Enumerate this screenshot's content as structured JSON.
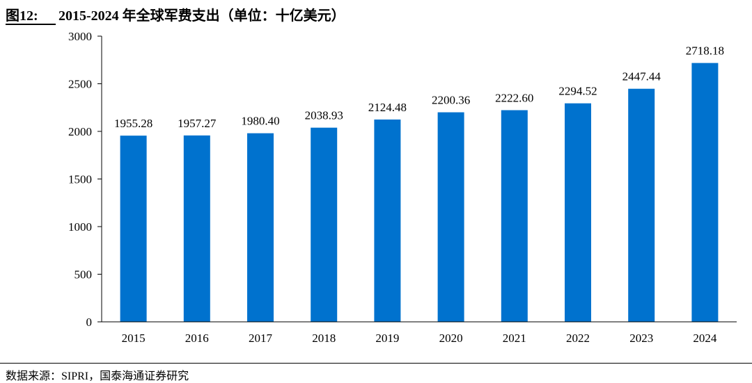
{
  "header": {
    "figure_label": "图12:",
    "title": "2015-2024 年全球军费支出（单位：十亿美元）"
  },
  "footer": {
    "source": "数据来源：SIPRI，国泰海通证券研究"
  },
  "colors": {
    "bar": "#0072CE",
    "axis": "#000000"
  },
  "chart_data": {
    "type": "bar",
    "title": "2015-2024 年全球军费支出（单位：十亿美元）",
    "categories": [
      "2015",
      "2016",
      "2017",
      "2018",
      "2019",
      "2020",
      "2021",
      "2022",
      "2023",
      "2024"
    ],
    "values": [
      1955.28,
      1957.27,
      1980.4,
      2038.93,
      2124.48,
      2200.36,
      2222.6,
      2294.52,
      2447.44,
      2718.18
    ],
    "value_labels": [
      "1955.28",
      "1957.27",
      "1980.40",
      "2038.93",
      "2124.48",
      "2200.36",
      "2222.60",
      "2294.52",
      "2447.44",
      "2718.18"
    ],
    "yticks": [
      "0",
      "500",
      "1000",
      "1500",
      "2000",
      "2500",
      "3000"
    ],
    "ylim": [
      0,
      3000
    ],
    "xlabel": "",
    "ylabel": "",
    "grid": false,
    "legend": "none"
  }
}
